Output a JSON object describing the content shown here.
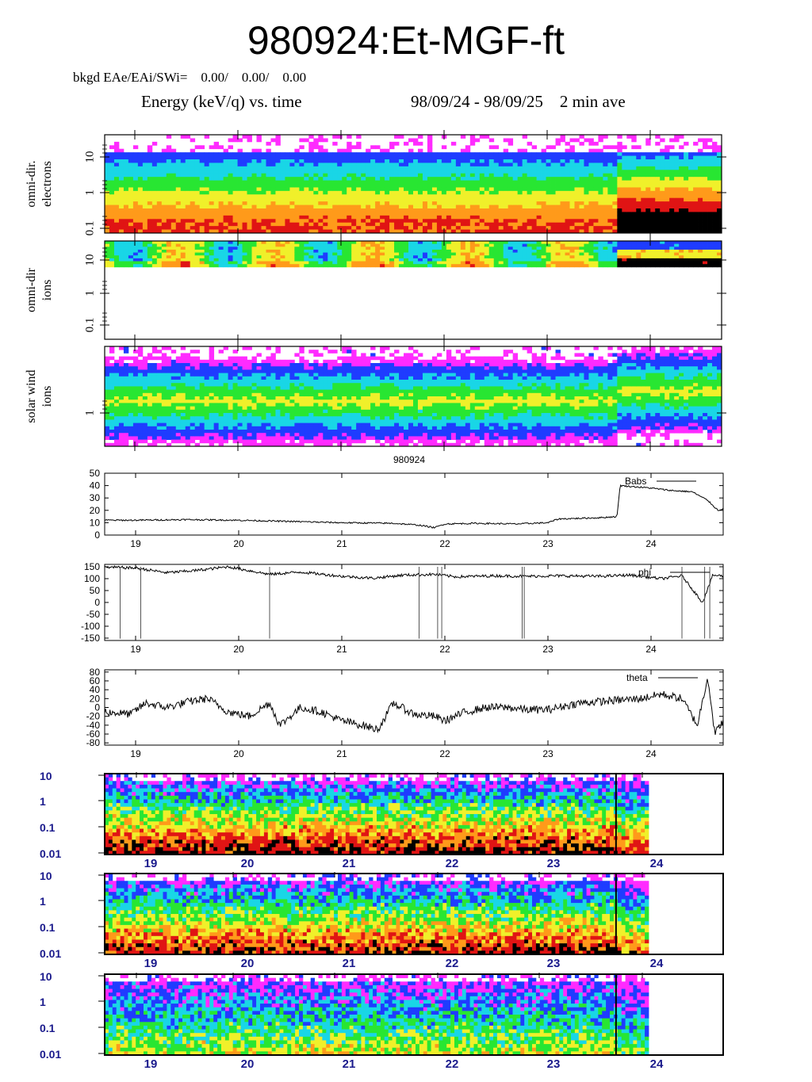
{
  "header": {
    "title": "980924:Et-MGF-ft",
    "bkgd": "bkgd EAe/EAi/SWi=    0.00/    0.00/    0.00",
    "energy_title": "Energy (keV/q) vs. time",
    "date_range": "98/09/24 - 98/09/25    2 min ave"
  },
  "colors": {
    "magenta": "#ff2bff",
    "blue": "#1f3cff",
    "cyan": "#19d6e6",
    "green": "#28e632",
    "yellow": "#f0f02a",
    "orange": "#ff9a1a",
    "red": "#e01414",
    "black": "#000000"
  },
  "chart_data": [
    {
      "type": "heatmap",
      "ylabel": "omni-dir. electrons",
      "yscale": "log",
      "ytick_labels": [
        "10",
        "1",
        "0.1"
      ],
      "ytick_values": [
        10,
        1,
        0.1
      ]
    },
    {
      "type": "heatmap",
      "ylabel": "omni-dir ions",
      "yscale": "log",
      "ytick_labels": [
        "10",
        "1",
        "0.1"
      ],
      "ytick_values": [
        10,
        1,
        0.1
      ]
    },
    {
      "type": "heatmap",
      "ylabel": "solar wind ions",
      "yscale": "log",
      "ytick_labels": [
        "1"
      ],
      "ytick_values": [
        1
      ],
      "xlabel": "980924"
    },
    {
      "type": "line",
      "series": [
        {
          "name": "Babs",
          "x": [
            18.7,
            19.0,
            19.5,
            20.0,
            20.5,
            21.0,
            21.5,
            21.75,
            21.9,
            22.0,
            22.3,
            22.7,
            23.0,
            23.1,
            23.5,
            23.67,
            23.7,
            24.0,
            24.2,
            24.4,
            24.55,
            24.65,
            24.72
          ],
          "y": [
            12,
            12,
            12.5,
            12,
            11,
            10,
            9.5,
            8,
            6,
            9,
            9.5,
            9,
            10,
            13,
            14,
            15,
            40,
            38,
            36,
            35,
            28,
            20,
            22
          ]
        }
      ],
      "ylim": [
        0,
        50
      ],
      "yticks": [
        0,
        10,
        20,
        30,
        40,
        50
      ],
      "xticks": [
        19,
        20,
        21,
        22,
        23,
        24
      ],
      "xlim": [
        18.7,
        24.7
      ]
    },
    {
      "type": "line",
      "series": [
        {
          "name": "phi",
          "x": [
            18.7,
            19.0,
            19.3,
            19.6,
            19.9,
            20.3,
            20.6,
            21.0,
            21.3,
            21.6,
            21.9,
            22.1,
            22.5,
            22.8,
            23.1,
            23.5,
            23.8,
            24.1,
            24.3,
            24.5,
            24.6,
            24.72
          ],
          "y": [
            148,
            145,
            125,
            135,
            150,
            118,
            128,
            110,
            102,
            115,
            118,
            108,
            112,
            110,
            112,
            110,
            115,
            100,
            112,
            0,
            115,
            110
          ]
        }
      ],
      "ylim": [
        -160,
        160
      ],
      "yticks": [
        150,
        100,
        50,
        0,
        -50,
        -100,
        -150
      ],
      "xticks": [
        19,
        20,
        21,
        22,
        23,
        24
      ],
      "xlim": [
        18.7,
        24.7
      ]
    },
    {
      "type": "line",
      "series": [
        {
          "name": "theta",
          "x": [
            18.7,
            18.95,
            19.1,
            19.3,
            19.55,
            19.7,
            19.9,
            20.1,
            20.3,
            20.4,
            20.6,
            20.8,
            21.0,
            21.2,
            21.35,
            21.5,
            21.7,
            21.9,
            22.0,
            22.2,
            22.4,
            22.6,
            22.8,
            23.0,
            23.3,
            23.6,
            23.9,
            24.1,
            24.3,
            24.45,
            24.55,
            24.62,
            24.72
          ],
          "y": [
            -10,
            -15,
            10,
            0,
            15,
            20,
            -10,
            -20,
            10,
            -40,
            0,
            -10,
            -30,
            -40,
            -50,
            10,
            -15,
            -20,
            -30,
            -10,
            0,
            0,
            -5,
            -5,
            10,
            15,
            20,
            30,
            20,
            -40,
            70,
            -60,
            -20
          ]
        }
      ],
      "ylim": [
        -85,
        85
      ],
      "yticks": [
        80,
        60,
        40,
        20,
        0,
        -20,
        -40,
        -60,
        -80
      ],
      "xticks": [
        19,
        20,
        21,
        22,
        23,
        24
      ],
      "xlim": [
        18.7,
        24.7
      ]
    },
    {
      "type": "heatmap",
      "yscale": "log",
      "ytick_labels": [
        "10",
        "1",
        "0.1",
        "0.01"
      ],
      "xtick_labels": [
        "19",
        "20",
        "21",
        "22",
        "23",
        "24"
      ]
    },
    {
      "type": "heatmap",
      "yscale": "log",
      "ytick_labels": [
        "10",
        "1",
        "0.1",
        "0.01"
      ],
      "xtick_labels": [
        "19",
        "20",
        "21",
        "22",
        "23",
        "24"
      ]
    },
    {
      "type": "heatmap",
      "yscale": "log",
      "ytick_labels": [
        "10",
        "1",
        "0.1",
        "0.01"
      ],
      "xtick_labels": [
        "19",
        "20",
        "21",
        "22",
        "23",
        "24"
      ]
    }
  ]
}
